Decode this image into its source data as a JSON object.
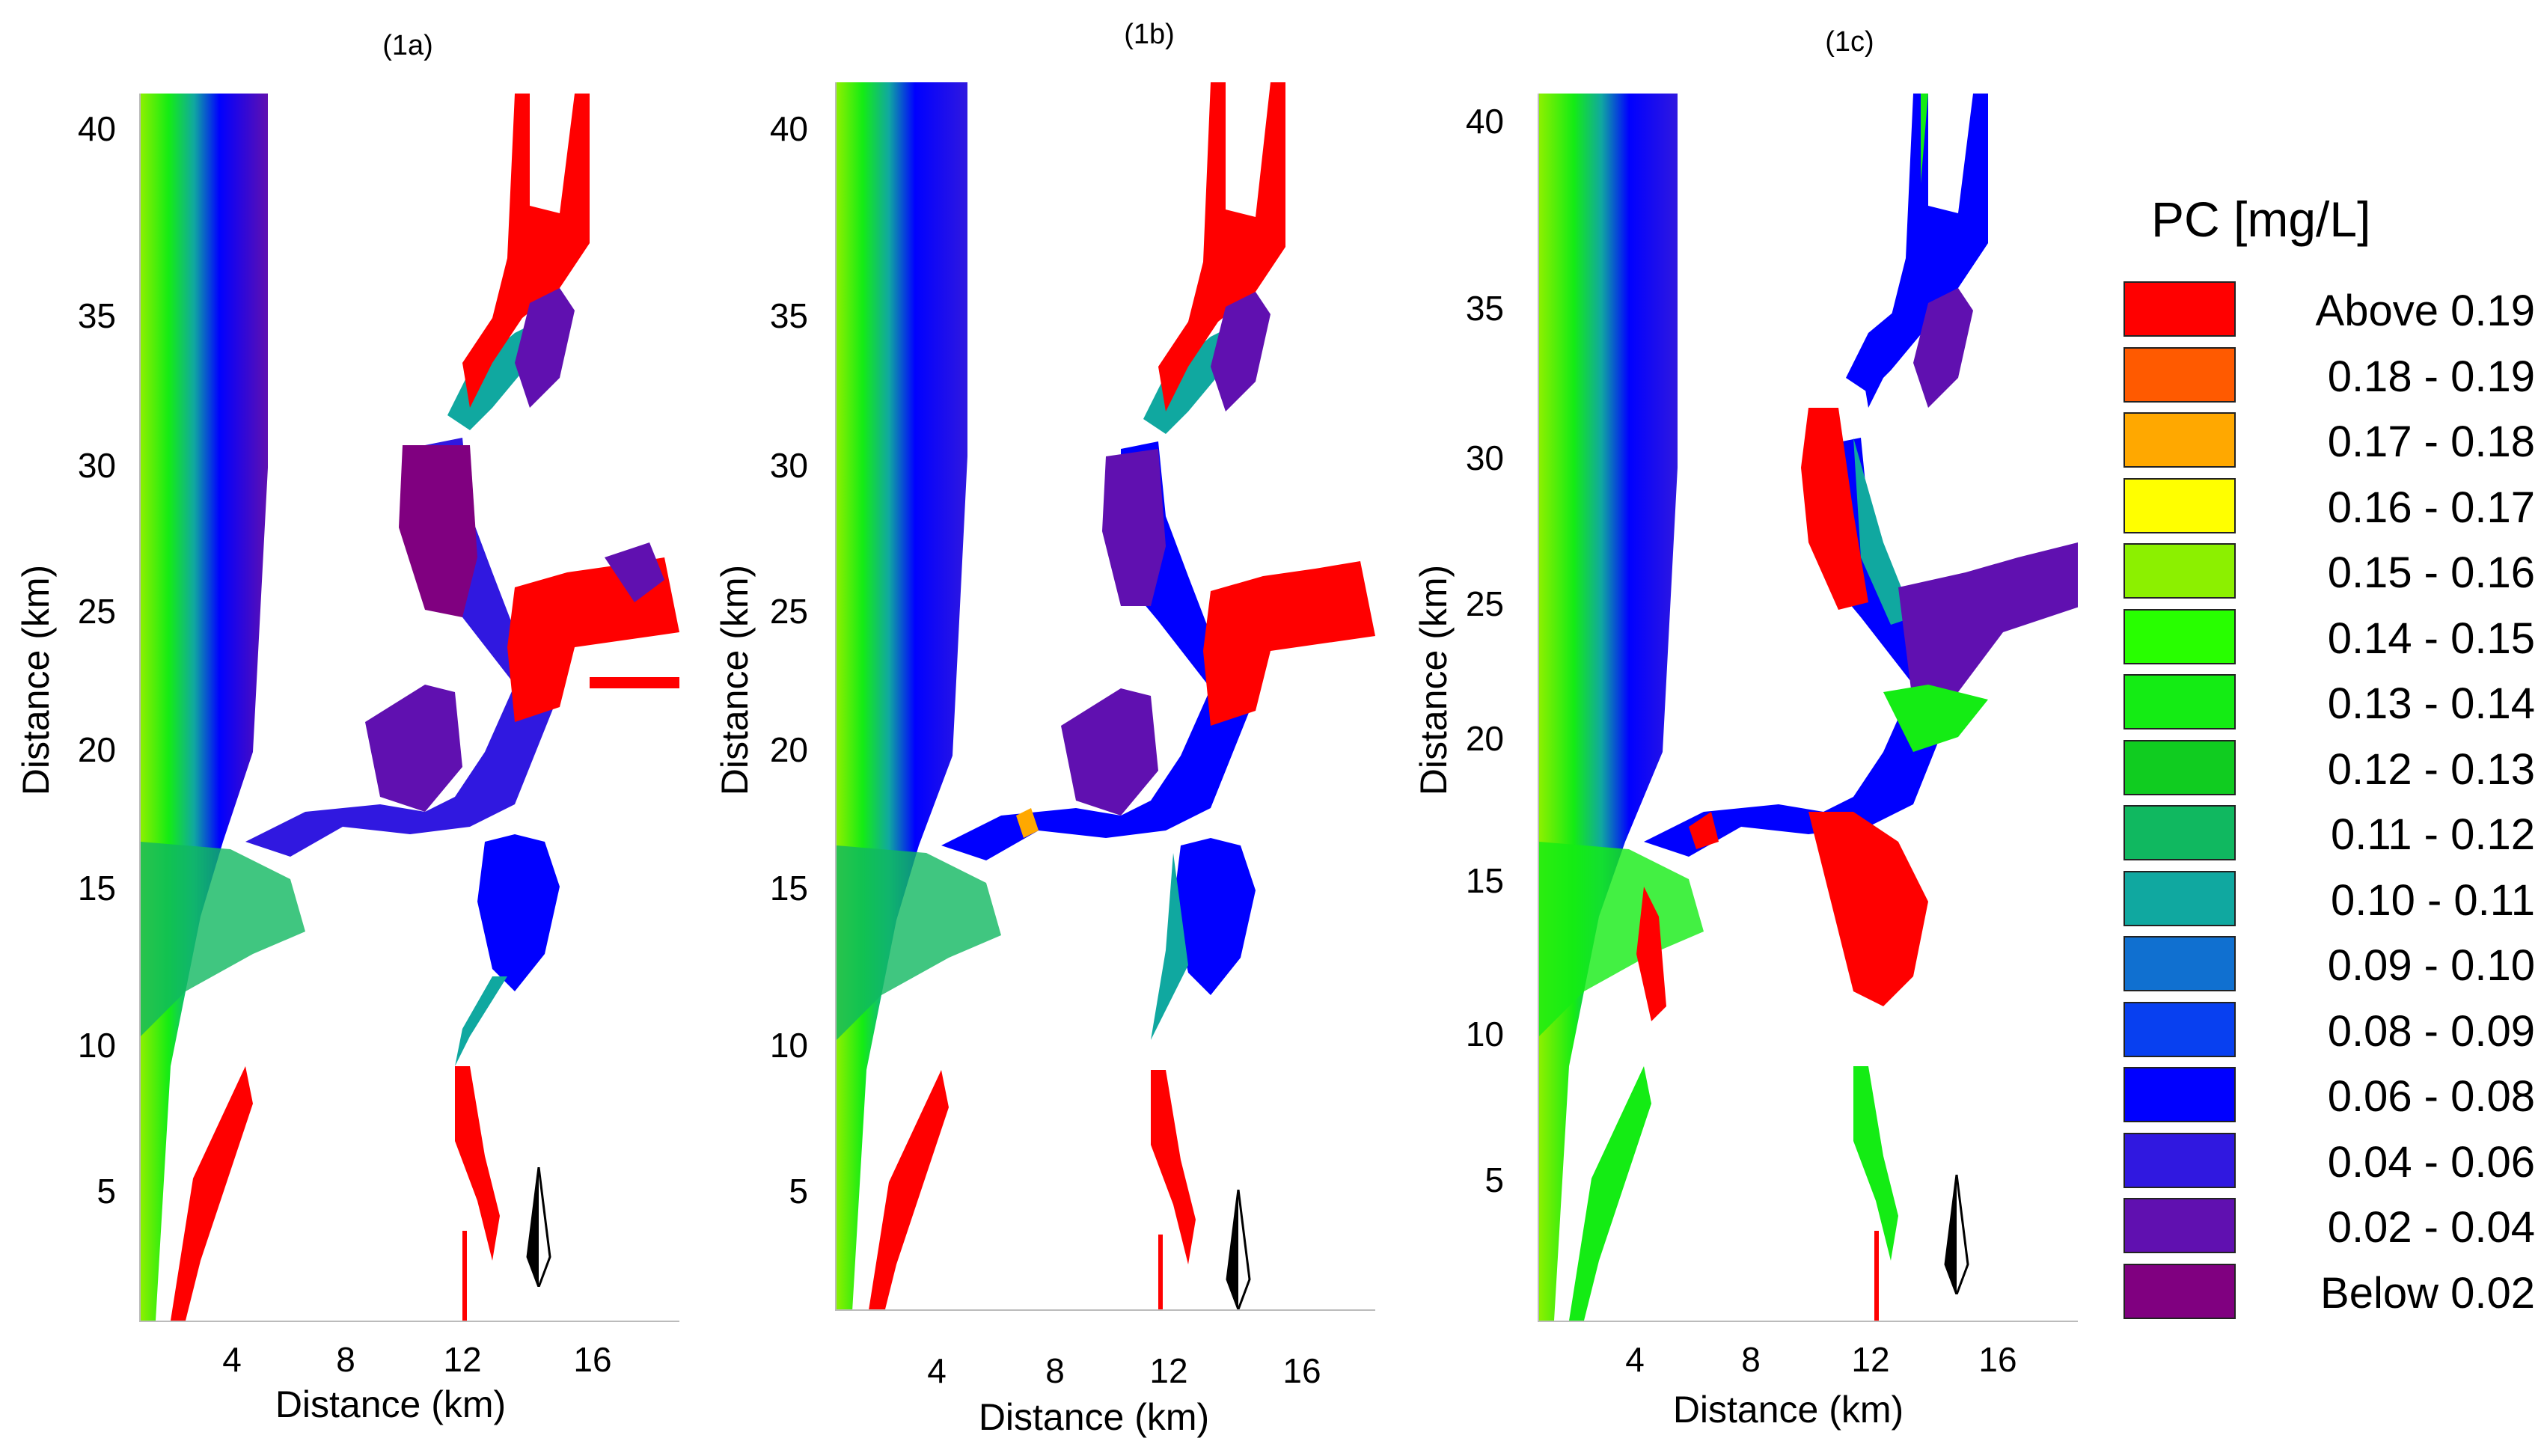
{
  "panels": [
    {
      "title": "(1a)"
    },
    {
      "title": "(1b)"
    },
    {
      "title": "(1c)"
    }
  ],
  "axes": {
    "x_label": "Distance (km)",
    "y_label": "Distance (km)",
    "x_ticks": [
      "4",
      "8",
      "12",
      "16"
    ],
    "y_ticks": [
      "40",
      "35",
      "30",
      "25",
      "20",
      "15",
      "10",
      "5"
    ]
  },
  "legend": {
    "title": "PC [mg/L]",
    "items": [
      {
        "label": "Above 0.19",
        "color": "#ff0000"
      },
      {
        "label": "0.18 - 0.19",
        "color": "#ff5a00"
      },
      {
        "label": "0.17 - 0.18",
        "color": "#ffa800"
      },
      {
        "label": "0.16 - 0.17",
        "color": "#ffff00"
      },
      {
        "label": "0.15 - 0.16",
        "color": "#8cf000"
      },
      {
        "label": "0.14 - 0.15",
        "color": "#28ff00"
      },
      {
        "label": "0.13 - 0.14",
        "color": "#14ec14"
      },
      {
        "label": "0.12 - 0.13",
        "color": "#10cc20"
      },
      {
        "label": "0.11 - 0.12",
        "color": "#10b860"
      },
      {
        "label": "0.10 - 0.11",
        "color": "#10a8a0"
      },
      {
        "label": "0.09 - 0.10",
        "color": "#1070d0"
      },
      {
        "label": "0.08 - 0.09",
        "color": "#0840f0"
      },
      {
        "label": "0.06 - 0.08",
        "color": "#0000ff"
      },
      {
        "label": "0.04 - 0.06",
        "color": "#3018e0"
      },
      {
        "label": "0.02 - 0.04",
        "color": "#6010b0"
      },
      {
        "label": "Below 0.02",
        "color": "#800080"
      }
    ]
  },
  "north_arrow": {
    "label": "N"
  }
}
